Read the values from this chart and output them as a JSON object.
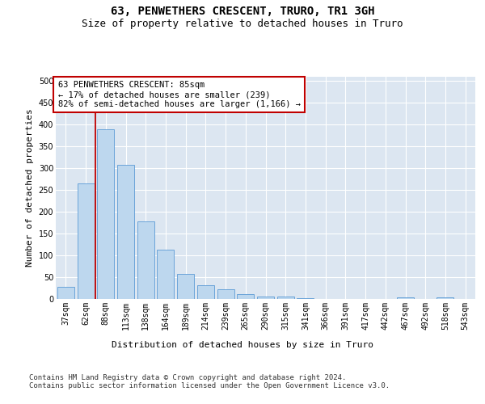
{
  "title": "63, PENWETHERS CRESCENT, TRURO, TR1 3GH",
  "subtitle": "Size of property relative to detached houses in Truro",
  "xlabel": "Distribution of detached houses by size in Truro",
  "ylabel": "Number of detached properties",
  "categories": [
    "37sqm",
    "62sqm",
    "88sqm",
    "113sqm",
    "138sqm",
    "164sqm",
    "189sqm",
    "214sqm",
    "239sqm",
    "265sqm",
    "290sqm",
    "315sqm",
    "341sqm",
    "366sqm",
    "391sqm",
    "417sqm",
    "442sqm",
    "467sqm",
    "492sqm",
    "518sqm",
    "543sqm"
  ],
  "values": [
    27,
    265,
    390,
    307,
    178,
    113,
    57,
    32,
    23,
    12,
    6,
    5,
    1,
    0,
    0,
    0,
    0,
    3,
    0,
    3,
    0
  ],
  "bar_color": "#bdd7ee",
  "bar_edge_color": "#5b9bd5",
  "vline_x": 1.5,
  "vline_color": "#c00000",
  "annotation_text": "63 PENWETHERS CRESCENT: 85sqm\n← 17% of detached houses are smaller (239)\n82% of semi-detached houses are larger (1,166) →",
  "annotation_box_color": "#ffffff",
  "annotation_box_edge": "#c00000",
  "ylim": [
    0,
    510
  ],
  "yticks": [
    0,
    50,
    100,
    150,
    200,
    250,
    300,
    350,
    400,
    450,
    500
  ],
  "plot_bg": "#dce6f1",
  "footer_text": "Contains HM Land Registry data © Crown copyright and database right 2024.\nContains public sector information licensed under the Open Government Licence v3.0.",
  "title_fontsize": 10,
  "subtitle_fontsize": 9,
  "axis_label_fontsize": 8,
  "ylabel_fontsize": 8,
  "tick_fontsize": 7,
  "annotation_fontsize": 7.5,
  "footer_fontsize": 6.5
}
